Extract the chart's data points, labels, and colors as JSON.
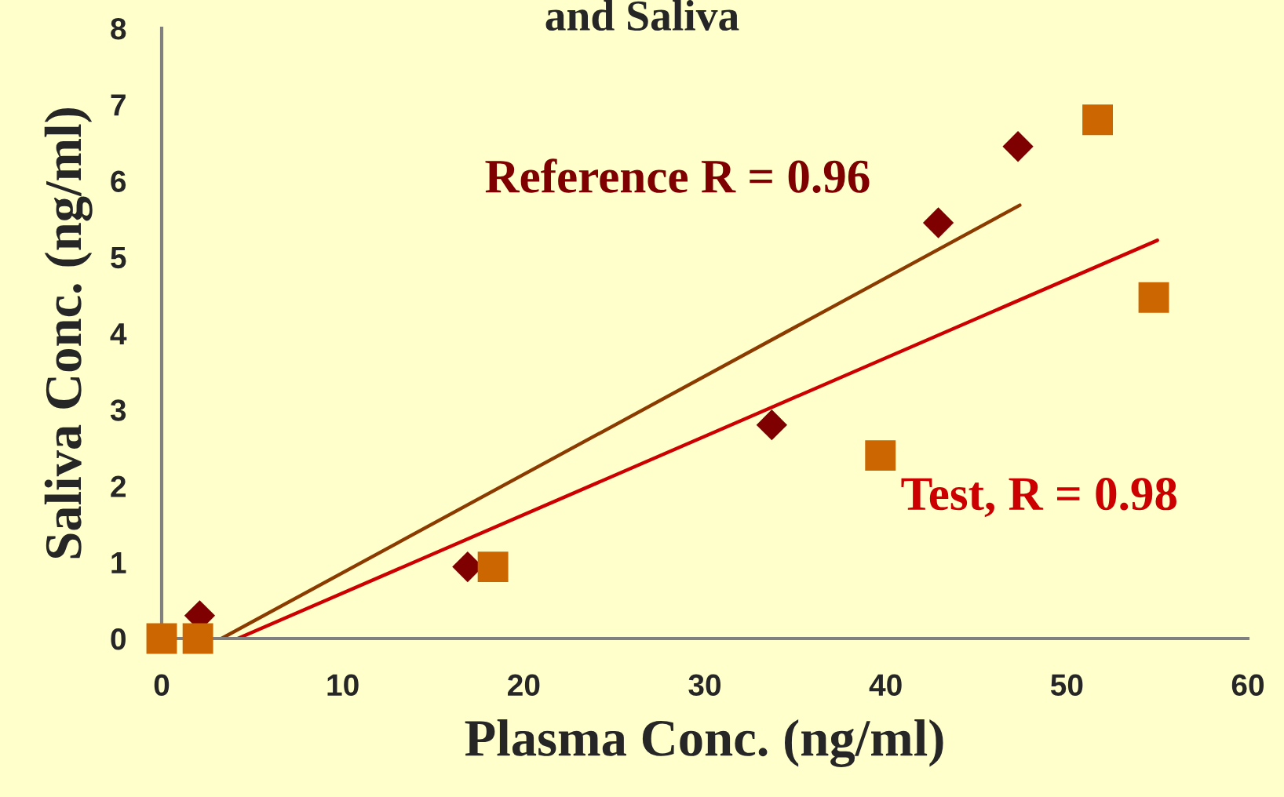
{
  "chart_data": {
    "type": "scatter",
    "title": "and Saliva",
    "xlabel": "Plasma Conc. (ng/ml)",
    "ylabel": "Saliva Conc. (ng/ml)",
    "xlim": [
      0,
      60
    ],
    "xticks": [
      0,
      10,
      20,
      30,
      40,
      50,
      60
    ],
    "ylim": [
      0,
      8
    ],
    "yticks": [
      0,
      1,
      2,
      3,
      4,
      5,
      6,
      7,
      8
    ],
    "grid": false,
    "legend": false,
    "series": [
      {
        "marker": "diamond",
        "color": "#7f0000",
        "x": [
          2.1,
          16.9,
          33.7,
          42.9,
          47.3
        ],
        "values": [
          0.3,
          0.94,
          2.8,
          5.45,
          6.45
        ]
      },
      {
        "marker": "square",
        "color": "#cc6600",
        "x": [
          0,
          2,
          18.3,
          39.7,
          51.7,
          54.8
        ],
        "values": [
          0,
          0,
          0.94,
          2.4,
          6.8,
          4.47
        ]
      },
      {
        "type": "line",
        "marker": "none",
        "color": "#8b3a00",
        "x": [
          3.3,
          47.4
        ],
        "values": [
          0,
          5.68
        ]
      },
      {
        "type": "line",
        "marker": "none",
        "color": "#cc0000",
        "x": [
          4.2,
          55.0
        ],
        "values": [
          0,
          5.22
        ]
      }
    ],
    "annotations": [
      "Reference R = 0.96",
      "Test, R = 0.98"
    ]
  }
}
